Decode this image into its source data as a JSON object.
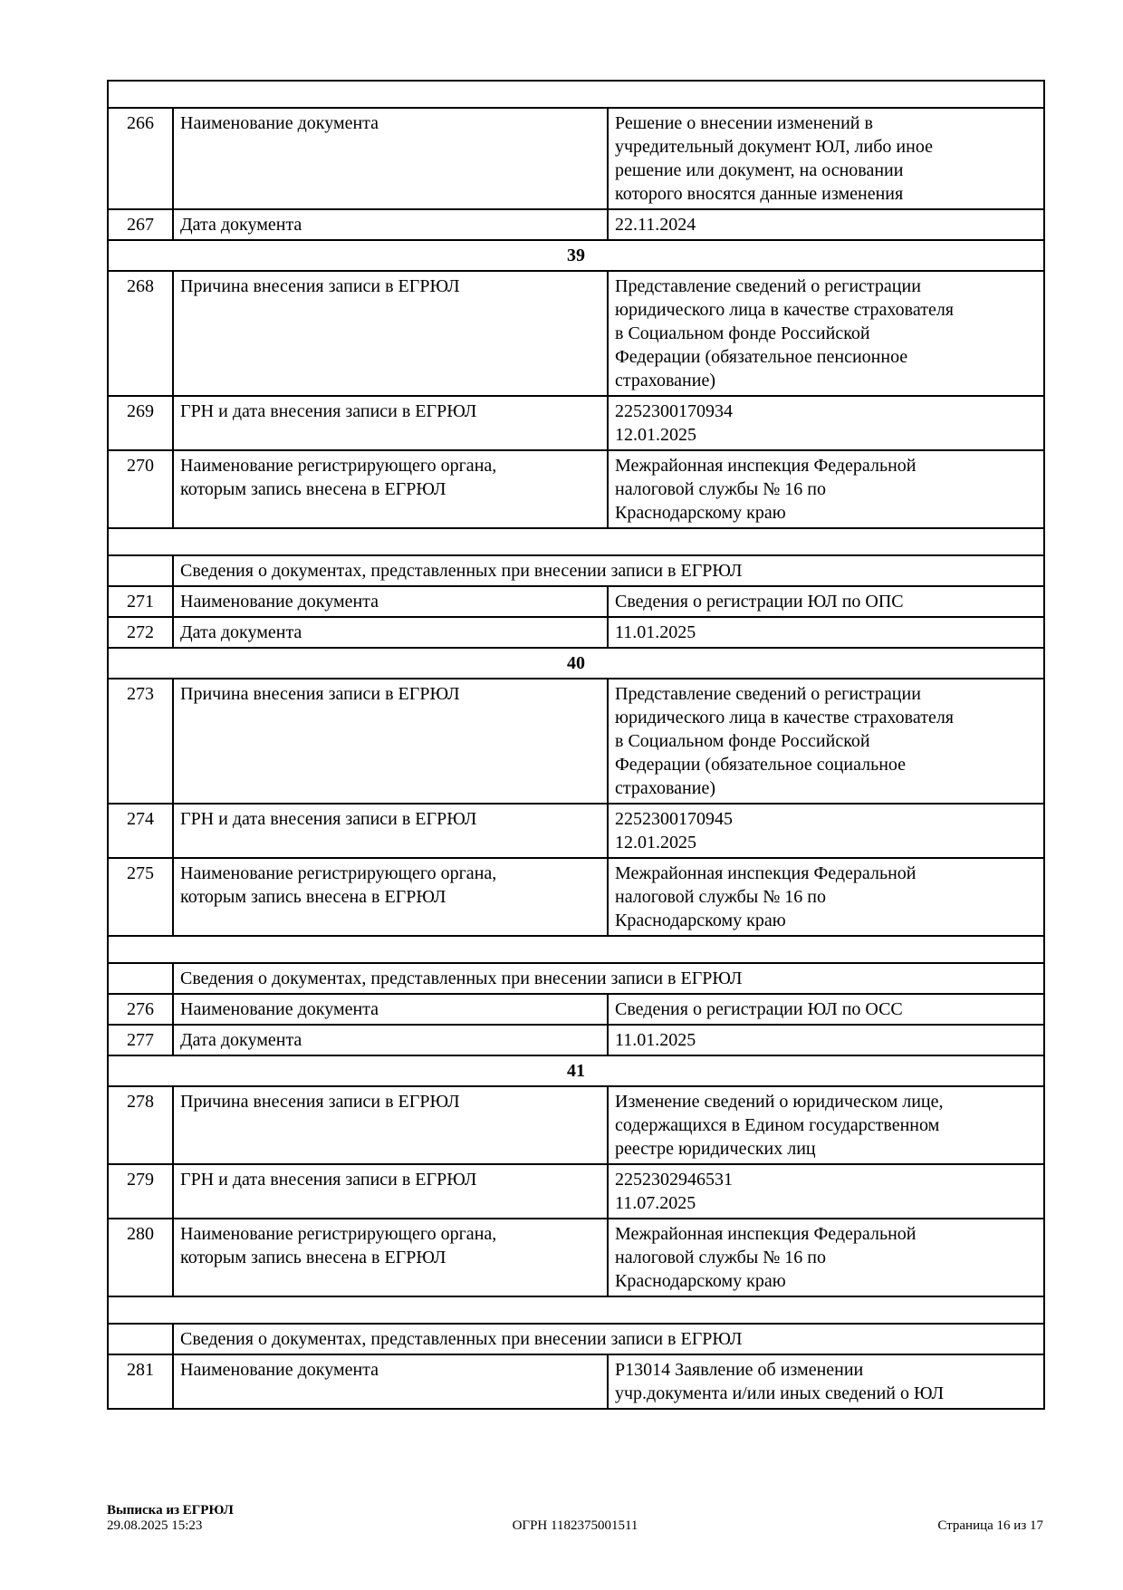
{
  "page": {
    "bg_color": "#ffffff",
    "text_color": "#000000",
    "border_color": "#000000"
  },
  "table": {
    "rows": [
      {
        "type": "spacer"
      },
      {
        "type": "data",
        "num": "266",
        "label": "Наименование документа",
        "value": "Решение о внесении изменений в\nучредительный документ ЮЛ, либо иное\nрешение или документ, на основании\nкоторого вносятся данные изменения"
      },
      {
        "type": "data",
        "num": "267",
        "label": "Дата документа",
        "value": "22.11.2024"
      },
      {
        "type": "section",
        "title": "39"
      },
      {
        "type": "data",
        "num": "268",
        "label": "Причина внесения записи в ЕГРЮЛ",
        "value": "Представление сведений о регистрации\nюридического лица в качестве страхователя\nв Социальном фонде Российской\nФедерации (обязательное пенсионное\nстрахование)"
      },
      {
        "type": "data",
        "num": "269",
        "label": "ГРН и дата внесения записи в ЕГРЮЛ",
        "value": "2252300170934\n12.01.2025"
      },
      {
        "type": "data",
        "num": "270",
        "label": "Наименование регистрирующего органа,\nкоторым запись внесена в ЕГРЮЛ",
        "value": "Межрайонная инспекция Федеральной\nналоговой службы № 16 по\nКраснодарскому краю"
      },
      {
        "type": "spacer"
      },
      {
        "type": "subheader",
        "title": "Сведения о документах, представленных при внесении записи в ЕГРЮЛ"
      },
      {
        "type": "data",
        "num": "271",
        "label": "Наименование документа",
        "value": "Сведения о регистрации ЮЛ по ОПС"
      },
      {
        "type": "data",
        "num": "272",
        "label": "Дата документа",
        "value": "11.01.2025"
      },
      {
        "type": "section",
        "title": "40"
      },
      {
        "type": "data",
        "num": "273",
        "label": "Причина внесения записи в ЕГРЮЛ",
        "value": "Представление сведений о регистрации\nюридического лица в качестве страхователя\nв Социальном фонде Российской\nФедерации (обязательное социальное\nстрахование)"
      },
      {
        "type": "data",
        "num": "274",
        "label": "ГРН и дата внесения записи в ЕГРЮЛ",
        "value": "2252300170945\n12.01.2025"
      },
      {
        "type": "data",
        "num": "275",
        "label": "Наименование регистрирующего органа,\nкоторым запись внесена в ЕГРЮЛ",
        "value": "Межрайонная инспекция Федеральной\nналоговой службы № 16 по\nКраснодарскому краю"
      },
      {
        "type": "spacer"
      },
      {
        "type": "subheader",
        "title": "Сведения о документах, представленных при внесении записи в ЕГРЮЛ"
      },
      {
        "type": "data",
        "num": "276",
        "label": "Наименование документа",
        "value": "Сведения о регистрации ЮЛ по ОСС"
      },
      {
        "type": "data",
        "num": "277",
        "label": "Дата документа",
        "value": "11.01.2025"
      },
      {
        "type": "section",
        "title": "41"
      },
      {
        "type": "data",
        "num": "278",
        "label": "Причина внесения записи в ЕГРЮЛ",
        "value": "Изменение сведений о юридическом лице,\nсодержащихся в Едином государственном\nреестре юридических лиц"
      },
      {
        "type": "data",
        "num": "279",
        "label": "ГРН и дата внесения записи в ЕГРЮЛ",
        "value": "2252302946531\n11.07.2025"
      },
      {
        "type": "data",
        "num": "280",
        "label": "Наименование регистрирующего органа,\nкоторым запись внесена в ЕГРЮЛ",
        "value": "Межрайонная инспекция Федеральной\nналоговой службы № 16 по\nКраснодарскому краю"
      },
      {
        "type": "spacer"
      },
      {
        "type": "subheader",
        "title": "Сведения о документах, представленных при внесении записи в ЕГРЮЛ"
      },
      {
        "type": "data",
        "num": "281",
        "label": "Наименование документа",
        "value": "Р13014 Заявление об изменении\nучр.документа и/или иных сведений о ЮЛ"
      }
    ]
  },
  "footer": {
    "title": "Выписка из ЕГРЮЛ",
    "timestamp": "29.08.2025 15:23",
    "ogrn": "ОГРН 1182375001511",
    "page_info": "Страница 16 из 17"
  }
}
